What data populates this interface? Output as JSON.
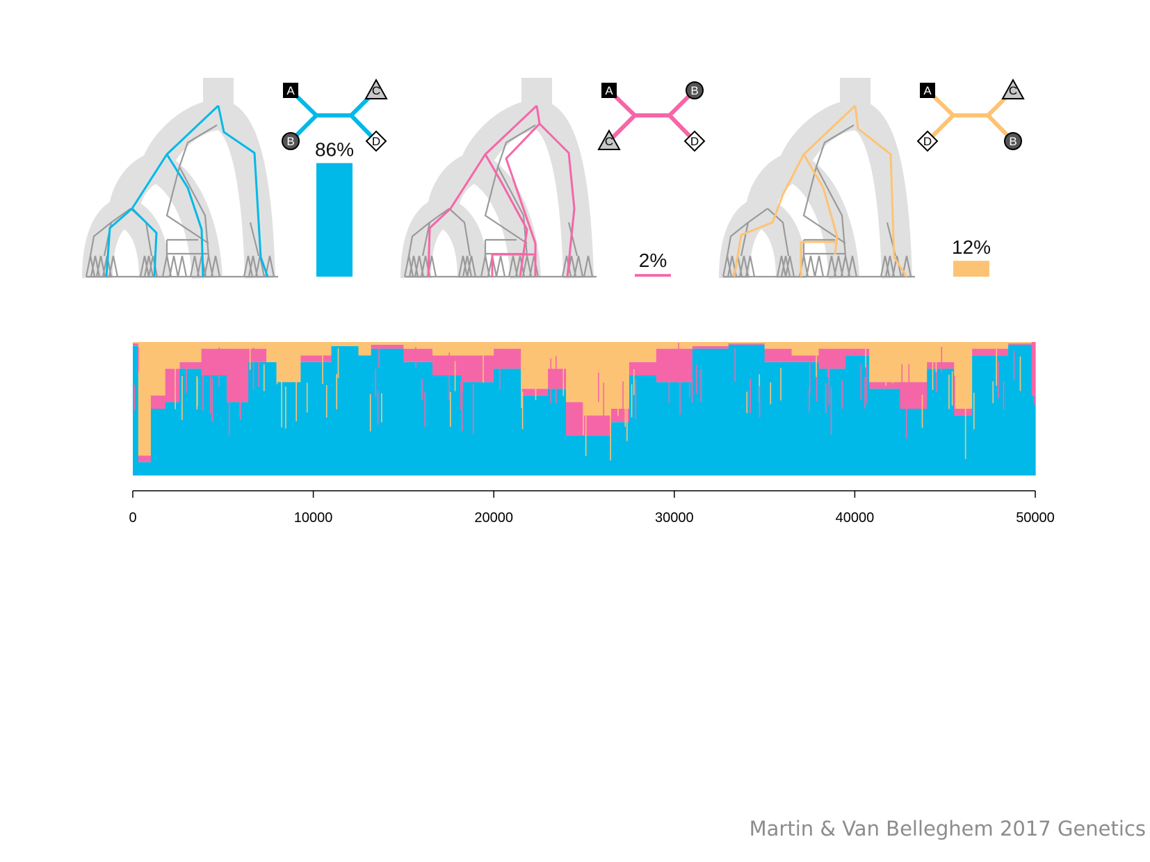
{
  "citation": "Martin & Van Belleghem 2017 Genetics",
  "colors": {
    "topo1": "#00b9e8",
    "topo2": "#f566a8",
    "topo3": "#fdc374",
    "gene_tree": "#9a9a9a",
    "species_tree": "#e0e0e0",
    "axis": "#000000"
  },
  "chart_data": [
    {
      "type": "bar",
      "categories": [
        "((A,B),(C,D))",
        "((A,C),(B,D))",
        "((A,D),(C,B))"
      ],
      "values": [
        86,
        2,
        12
      ],
      "value_labels": [
        "86%",
        "2%",
        "12%"
      ],
      "ylim": [
        0,
        100
      ],
      "series": [
        {
          "values": [
            86,
            2,
            12
          ]
        }
      ],
      "topologies": [
        {
          "color": "topo1",
          "left_top": {
            "label": "A",
            "shape": "square"
          },
          "left_bottom": {
            "label": "B",
            "shape": "circle"
          },
          "right_top": {
            "label": "C",
            "shape": "triangle"
          },
          "right_bottom": {
            "label": "D",
            "shape": "diamond"
          }
        },
        {
          "color": "topo2",
          "left_top": {
            "label": "A",
            "shape": "square"
          },
          "left_bottom": {
            "label": "C",
            "shape": "triangle"
          },
          "right_top": {
            "label": "B",
            "shape": "circle"
          },
          "right_bottom": {
            "label": "D",
            "shape": "diamond"
          }
        },
        {
          "color": "topo3",
          "left_top": {
            "label": "A",
            "shape": "square"
          },
          "left_bottom": {
            "label": "D",
            "shape": "diamond"
          },
          "right_top": {
            "label": "C",
            "shape": "triangle"
          },
          "right_bottom": {
            "label": "B",
            "shape": "circle"
          }
        }
      ]
    },
    {
      "type": "area",
      "x_range": [
        0,
        50000
      ],
      "xticks": [
        "0",
        "10000",
        "20000",
        "30000",
        "40000",
        "50000"
      ],
      "ylim": [
        0,
        1
      ],
      "grid": false,
      "stack_order": [
        "topo1",
        "topo2",
        "topo3"
      ],
      "segments": [
        {
          "x": [
            0,
            300
          ],
          "topo1": 0.97,
          "topo2": 0.02,
          "topo3": 0.01
        },
        {
          "x": [
            300,
            1000
          ],
          "topo1": 0.1,
          "topo2": 0.05,
          "topo3": 0.85
        },
        {
          "x": [
            1000,
            1800
          ],
          "topo1": 0.5,
          "topo2": 0.1,
          "topo3": 0.4
        },
        {
          "x": [
            1800,
            2600
          ],
          "topo1": 0.55,
          "topo2": 0.25,
          "topo3": 0.2
        },
        {
          "x": [
            2600,
            3800
          ],
          "topo1": 0.8,
          "topo2": 0.05,
          "topo3": 0.15
        },
        {
          "x": [
            3800,
            5200
          ],
          "topo1": 0.75,
          "topo2": 0.2,
          "topo3": 0.05
        },
        {
          "x": [
            5200,
            6400
          ],
          "topo1": 0.55,
          "topo2": 0.4,
          "topo3": 0.05
        },
        {
          "x": [
            6400,
            7400
          ],
          "topo1": 0.85,
          "topo2": 0.1,
          "topo3": 0.05
        },
        {
          "x": [
            7400,
            8000
          ],
          "topo1": 0.85,
          "topo2": 0.0,
          "topo3": 0.15
        },
        {
          "x": [
            8000,
            9300
          ],
          "topo1": 0.7,
          "topo2": 0.0,
          "topo3": 0.3
        },
        {
          "x": [
            9300,
            11000
          ],
          "topo1": 0.85,
          "topo2": 0.05,
          "topo3": 0.1
        },
        {
          "x": [
            11000,
            12500
          ],
          "topo1": 0.97,
          "topo2": 0.0,
          "topo3": 0.03
        },
        {
          "x": [
            12500,
            13200
          ],
          "topo1": 0.9,
          "topo2": 0.0,
          "topo3": 0.1
        },
        {
          "x": [
            13200,
            15000
          ],
          "topo1": 0.95,
          "topo2": 0.03,
          "topo3": 0.02
        },
        {
          "x": [
            15000,
            16600
          ],
          "topo1": 0.85,
          "topo2": 0.1,
          "topo3": 0.05
        },
        {
          "x": [
            16600,
            18200
          ],
          "topo1": 0.75,
          "topo2": 0.15,
          "topo3": 0.1
        },
        {
          "x": [
            18200,
            20000
          ],
          "topo1": 0.7,
          "topo2": 0.2,
          "topo3": 0.1
        },
        {
          "x": [
            20000,
            21500
          ],
          "topo1": 0.8,
          "topo2": 0.15,
          "topo3": 0.05
        },
        {
          "x": [
            21500,
            23000
          ],
          "topo1": 0.6,
          "topo2": 0.05,
          "topo3": 0.35
        },
        {
          "x": [
            23000,
            24000
          ],
          "topo1": 0.65,
          "topo2": 0.15,
          "topo3": 0.2
        },
        {
          "x": [
            24000,
            25000
          ],
          "topo1": 0.3,
          "topo2": 0.25,
          "topo3": 0.45
        },
        {
          "x": [
            25000,
            26500
          ],
          "topo1": 0.3,
          "topo2": 0.15,
          "topo3": 0.55
        },
        {
          "x": [
            26500,
            27500
          ],
          "topo1": 0.4,
          "topo2": 0.1,
          "topo3": 0.5
        },
        {
          "x": [
            27500,
            29000
          ],
          "topo1": 0.75,
          "topo2": 0.1,
          "topo3": 0.15
        },
        {
          "x": [
            29000,
            31000
          ],
          "topo1": 0.7,
          "topo2": 0.25,
          "topo3": 0.05
        },
        {
          "x": [
            31000,
            33000
          ],
          "topo1": 0.95,
          "topo2": 0.02,
          "topo3": 0.03
        },
        {
          "x": [
            33000,
            35000
          ],
          "topo1": 0.98,
          "topo2": 0.01,
          "topo3": 0.01
        },
        {
          "x": [
            35000,
            36500
          ],
          "topo1": 0.85,
          "topo2": 0.1,
          "topo3": 0.05
        },
        {
          "x": [
            36500,
            38000
          ],
          "topo1": 0.85,
          "topo2": 0.05,
          "topo3": 0.1
        },
        {
          "x": [
            38000,
            39500
          ],
          "topo1": 0.8,
          "topo2": 0.15,
          "topo3": 0.05
        },
        {
          "x": [
            39500,
            40800
          ],
          "topo1": 0.9,
          "topo2": 0.05,
          "topo3": 0.05
        },
        {
          "x": [
            40800,
            42500
          ],
          "topo1": 0.65,
          "topo2": 0.05,
          "topo3": 0.3
        },
        {
          "x": [
            42500,
            44000
          ],
          "topo1": 0.5,
          "topo2": 0.2,
          "topo3": 0.3
        },
        {
          "x": [
            44000,
            45500
          ],
          "topo1": 0.8,
          "topo2": 0.05,
          "topo3": 0.15
        },
        {
          "x": [
            45500,
            46500
          ],
          "topo1": 0.45,
          "topo2": 0.05,
          "topo3": 0.5
        },
        {
          "x": [
            46500,
            48500
          ],
          "topo1": 0.9,
          "topo2": 0.05,
          "topo3": 0.05
        },
        {
          "x": [
            48500,
            49800
          ],
          "topo1": 0.98,
          "topo2": 0.01,
          "topo3": 0.01
        },
        {
          "x": [
            49800,
            50000
          ],
          "topo1": 0.6,
          "topo2": 0.4,
          "topo3": 0.0
        }
      ]
    }
  ]
}
